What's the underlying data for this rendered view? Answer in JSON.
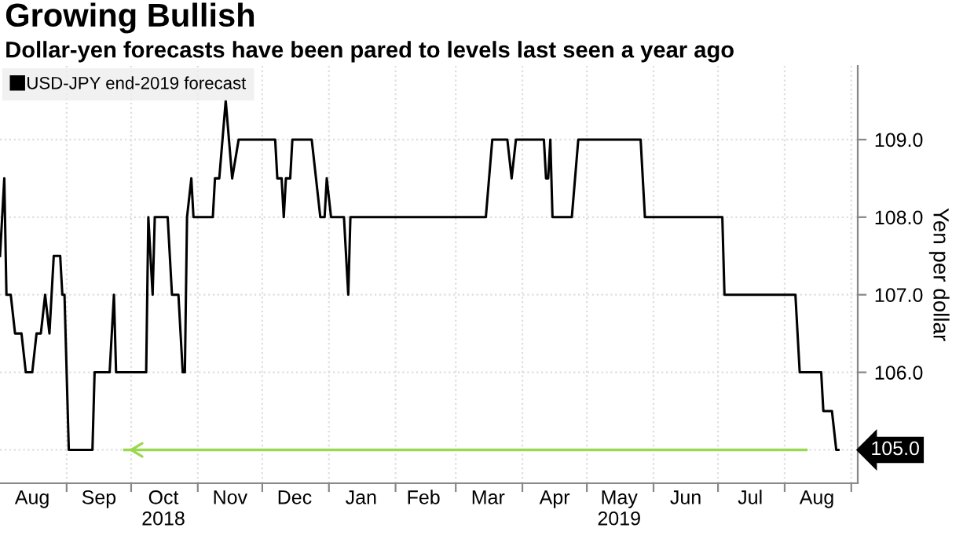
{
  "chart_data": {
    "type": "line",
    "title": "Growing Bullish",
    "subtitle": "Dollar-yen forecasts have been pared to levels last seen a year ago",
    "ylabel": "Yen per dollar",
    "x": [
      "2018-08-01",
      "2018-08-03",
      "2018-08-04",
      "2018-08-06",
      "2018-08-08",
      "2018-08-11",
      "2018-08-13",
      "2018-08-16",
      "2018-08-18",
      "2018-08-20",
      "2018-08-22",
      "2018-08-24",
      "2018-08-26",
      "2018-08-29",
      "2018-08-30",
      "2018-08-31",
      "2018-09-02",
      "2018-09-13",
      "2018-09-14",
      "2018-09-21",
      "2018-09-23",
      "2018-09-24",
      "2018-10-08",
      "2018-10-09",
      "2018-10-11",
      "2018-10-12",
      "2018-10-18",
      "2018-10-20",
      "2018-10-23",
      "2018-10-25",
      "2018-10-26",
      "2018-10-27",
      "2018-10-29",
      "2018-10-30",
      "2018-11-08",
      "2018-11-09",
      "2018-11-11",
      "2018-11-14",
      "2018-11-17",
      "2018-11-20",
      "2018-12-07",
      "2018-12-08",
      "2018-12-10",
      "2018-12-11",
      "2018-12-12",
      "2018-12-14",
      "2018-12-15",
      "2018-12-24",
      "2018-12-28",
      "2018-12-30",
      "2018-12-31",
      "2019-01-02",
      "2019-01-08",
      "2019-01-10",
      "2019-01-11",
      "2019-03-15",
      "2019-03-18",
      "2019-03-25",
      "2019-03-27",
      "2019-03-29",
      "2019-04-11",
      "2019-04-12",
      "2019-04-13",
      "2019-04-14",
      "2019-04-15",
      "2019-04-24",
      "2019-04-27",
      "2019-05-26",
      "2019-05-28",
      "2019-07-03",
      "2019-07-04",
      "2019-08-06",
      "2019-08-08",
      "2019-08-18",
      "2019-08-19",
      "2019-08-23",
      "2019-08-25",
      "2019-08-26"
    ],
    "series": [
      {
        "name": "USD-JPY end-2019 forecast",
        "color": "#000000",
        "values": [
          107.5,
          108.5,
          107,
          107,
          106.5,
          106.5,
          106,
          106,
          106.5,
          106.5,
          107,
          106.5,
          107.5,
          107.5,
          107,
          107,
          105,
          105,
          106,
          106,
          107,
          106,
          106,
          108,
          107,
          108,
          108,
          107,
          107,
          106,
          106,
          108,
          108.5,
          108,
          108,
          108.5,
          108.5,
          109.5,
          108.5,
          109,
          109,
          108.5,
          108.5,
          108,
          108.5,
          108.5,
          109,
          109,
          108,
          108,
          108.5,
          108,
          108,
          107,
          108,
          108,
          109,
          109,
          108.5,
          109,
          109,
          108.5,
          108.5,
          109,
          108,
          108,
          109,
          109,
          108,
          108,
          107,
          107,
          106,
          106,
          105.5,
          105.5,
          105,
          105
        ]
      }
    ],
    "xlim": [
      "2018-08-01",
      "2019-09-04"
    ],
    "xticks": [
      {
        "value": "2018-09-01",
        "label": null
      },
      {
        "value": "2018-10-01",
        "label": null
      },
      {
        "value": "2018-11-01",
        "label": null
      },
      {
        "value": "2018-12-01",
        "label": null
      },
      {
        "value": "2019-01-01",
        "label": null
      },
      {
        "value": "2019-02-01",
        "label": null
      },
      {
        "value": "2019-03-01",
        "label": null
      },
      {
        "value": "2019-04-01",
        "label": null
      },
      {
        "value": "2019-05-01",
        "label": null
      },
      {
        "value": "2019-06-01",
        "label": null
      },
      {
        "value": "2019-07-01",
        "label": null
      },
      {
        "value": "2019-08-01",
        "label": null
      },
      {
        "value": "2019-09-01",
        "label": null
      },
      {
        "value": "2018-08-16",
        "label": "Aug"
      },
      {
        "value": "2018-09-16",
        "label": "Sep"
      },
      {
        "value": "2018-10-16",
        "label": "Oct\n2018"
      },
      {
        "value": "2018-11-16",
        "label": "Nov"
      },
      {
        "value": "2018-12-16",
        "label": "Dec"
      },
      {
        "value": "2019-01-16",
        "label": "Jan"
      },
      {
        "value": "2019-02-14",
        "label": "Feb"
      },
      {
        "value": "2019-03-16",
        "label": "Mar"
      },
      {
        "value": "2019-04-16",
        "label": "Apr"
      },
      {
        "value": "2019-05-16",
        "label": "May\n2019"
      },
      {
        "value": "2019-06-16",
        "label": "Jun"
      },
      {
        "value": "2019-07-16",
        "label": "Jul"
      },
      {
        "value": "2019-08-16",
        "label": "Aug"
      }
    ],
    "ylim": [
      104.57,
      109.95
    ],
    "yticks": [
      {
        "value": 105,
        "label": null
      },
      {
        "value": 106,
        "label": "106.0"
      },
      {
        "value": 107,
        "label": "107.0"
      },
      {
        "value": 108,
        "label": "108.0"
      },
      {
        "value": 109,
        "label": "109.0"
      }
    ],
    "ref_lines": [
      {
        "axis": "y",
        "value": 105,
        "color": "#9ad94f"
      }
    ],
    "annotations": [
      {
        "text": "105.0",
        "x": "2019-08-26",
        "y": 105
      }
    ],
    "grid": true,
    "legend": "top left"
  }
}
